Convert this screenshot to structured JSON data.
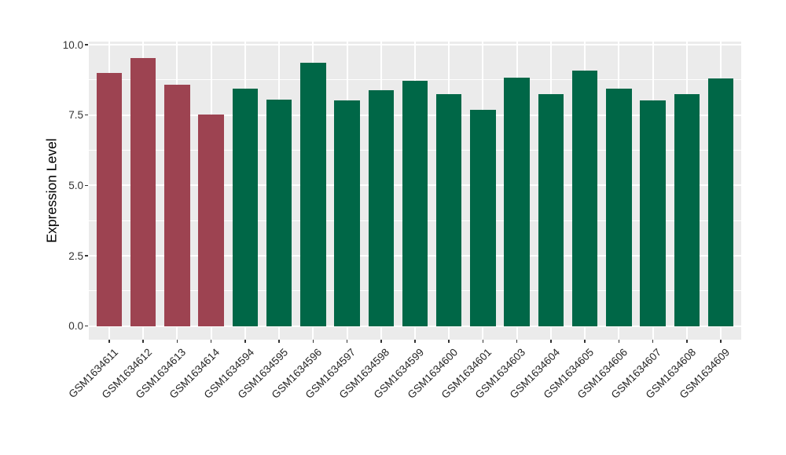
{
  "figure": {
    "background_color": "#ffffff",
    "panel_background_color": "#ebebeb",
    "grid_color": "#ffffff",
    "tick_color": "#333333",
    "axis_title_color": "#000000"
  },
  "chart_data": {
    "type": "bar",
    "title": "",
    "xlabel": "",
    "ylabel": "Expression Level",
    "ylim": [
      0,
      10
    ],
    "yticks": [
      0,
      2.5,
      5,
      7.5,
      10
    ],
    "ytick_labels": [
      "0.0",
      "2.5",
      "5.0",
      "7.5",
      "10.0"
    ],
    "yticks_minor": [
      1.25,
      3.75,
      6.25,
      8.75
    ],
    "grid": true,
    "legend_position": "none",
    "group_colors": {
      "group1": "#9d4351",
      "group2": "#006747"
    },
    "categories": [
      "GSM1634611",
      "GSM1634612",
      "GSM1634613",
      "GSM1634614",
      "GSM1634594",
      "GSM1634595",
      "GSM1634596",
      "GSM1634597",
      "GSM1634598",
      "GSM1634599",
      "GSM1634600",
      "GSM1634601",
      "GSM1634603",
      "GSM1634604",
      "GSM1634605",
      "GSM1634606",
      "GSM1634607",
      "GSM1634608",
      "GSM1634609"
    ],
    "bars": [
      {
        "label": "GSM1634611",
        "value": 9.0,
        "group": "group1"
      },
      {
        "label": "GSM1634612",
        "value": 9.53,
        "group": "group1"
      },
      {
        "label": "GSM1634613",
        "value": 8.59,
        "group": "group1"
      },
      {
        "label": "GSM1634614",
        "value": 7.53,
        "group": "group1"
      },
      {
        "label": "GSM1634594",
        "value": 8.45,
        "group": "group2"
      },
      {
        "label": "GSM1634595",
        "value": 8.05,
        "group": "group2"
      },
      {
        "label": "GSM1634596",
        "value": 9.36,
        "group": "group2"
      },
      {
        "label": "GSM1634597",
        "value": 8.02,
        "group": "group2"
      },
      {
        "label": "GSM1634598",
        "value": 8.38,
        "group": "group2"
      },
      {
        "label": "GSM1634599",
        "value": 8.72,
        "group": "group2"
      },
      {
        "label": "GSM1634600",
        "value": 8.24,
        "group": "group2"
      },
      {
        "label": "GSM1634601",
        "value": 7.7,
        "group": "group2"
      },
      {
        "label": "GSM1634603",
        "value": 8.82,
        "group": "group2"
      },
      {
        "label": "GSM1634604",
        "value": 8.24,
        "group": "group2"
      },
      {
        "label": "GSM1634605",
        "value": 9.08,
        "group": "group2"
      },
      {
        "label": "GSM1634606",
        "value": 8.45,
        "group": "group2"
      },
      {
        "label": "GSM1634607",
        "value": 8.02,
        "group": "group2"
      },
      {
        "label": "GSM1634608",
        "value": 8.24,
        "group": "group2"
      },
      {
        "label": "GSM1634609",
        "value": 8.8,
        "group": "group2"
      }
    ]
  }
}
